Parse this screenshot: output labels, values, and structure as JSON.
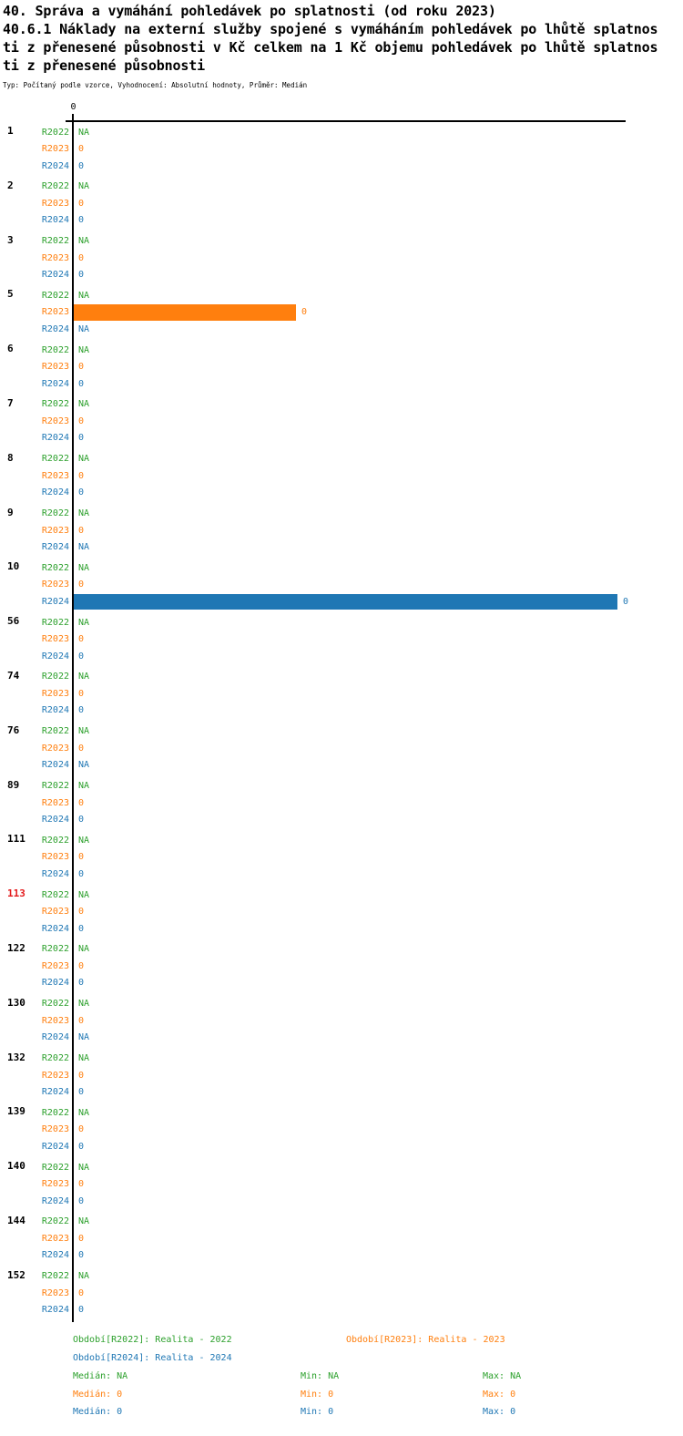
{
  "header": {
    "title": "40. Správa a vymáhání pohledávek po splatnosti (od roku 2023)",
    "subtitle_lines": [
      "40.6.1 Náklady na externí služby spojené s vymáháním pohledávek po lhůtě splatnos",
      "ti z přenesené působnosti v Kč celkem na 1 Kč objemu pohledávek po lhůtě splatnos",
      "ti z přenesené působnosti"
    ],
    "meta": "Typ: Počítaný podle vzorce, Vyhodnocení: Absolutní hodnoty, Průměr: Medián"
  },
  "chart_data": {
    "type": "bar",
    "orientation": "horizontal",
    "x_axis": {
      "position": "top",
      "tick_labels": [
        "0"
      ]
    },
    "series": [
      "R2022",
      "R2023",
      "R2024"
    ],
    "colors": {
      "R2022": "#2ca02c",
      "R2023": "#ff7f0e",
      "R2024": "#1f77b4",
      "group_id_default": "#000000",
      "group_id_highlight": "#e31a1c",
      "axis": "#000000"
    },
    "groups": [
      {
        "id": "1",
        "id_color": "#000000",
        "rows": [
          {
            "series": "R2022",
            "value": "NA",
            "bar_fraction": 0
          },
          {
            "series": "R2023",
            "value": "0",
            "bar_fraction": 0
          },
          {
            "series": "R2024",
            "value": "0",
            "bar_fraction": 0
          }
        ]
      },
      {
        "id": "2",
        "id_color": "#000000",
        "rows": [
          {
            "series": "R2022",
            "value": "NA",
            "bar_fraction": 0
          },
          {
            "series": "R2023",
            "value": "0",
            "bar_fraction": 0
          },
          {
            "series": "R2024",
            "value": "0",
            "bar_fraction": 0
          }
        ]
      },
      {
        "id": "3",
        "id_color": "#000000",
        "rows": [
          {
            "series": "R2022",
            "value": "NA",
            "bar_fraction": 0
          },
          {
            "series": "R2023",
            "value": "0",
            "bar_fraction": 0
          },
          {
            "series": "R2024",
            "value": "0",
            "bar_fraction": 0
          }
        ]
      },
      {
        "id": "5",
        "id_color": "#000000",
        "rows": [
          {
            "series": "R2022",
            "value": "NA",
            "bar_fraction": 0
          },
          {
            "series": "R2023",
            "value": "0",
            "bar_fraction": 0.403
          },
          {
            "series": "R2024",
            "value": "NA",
            "bar_fraction": 0
          }
        ]
      },
      {
        "id": "6",
        "id_color": "#000000",
        "rows": [
          {
            "series": "R2022",
            "value": "NA",
            "bar_fraction": 0
          },
          {
            "series": "R2023",
            "value": "0",
            "bar_fraction": 0
          },
          {
            "series": "R2024",
            "value": "0",
            "bar_fraction": 0
          }
        ]
      },
      {
        "id": "7",
        "id_color": "#000000",
        "rows": [
          {
            "series": "R2022",
            "value": "NA",
            "bar_fraction": 0
          },
          {
            "series": "R2023",
            "value": "0",
            "bar_fraction": 0
          },
          {
            "series": "R2024",
            "value": "0",
            "bar_fraction": 0
          }
        ]
      },
      {
        "id": "8",
        "id_color": "#000000",
        "rows": [
          {
            "series": "R2022",
            "value": "NA",
            "bar_fraction": 0
          },
          {
            "series": "R2023",
            "value": "0",
            "bar_fraction": 0
          },
          {
            "series": "R2024",
            "value": "0",
            "bar_fraction": 0
          }
        ]
      },
      {
        "id": "9",
        "id_color": "#000000",
        "rows": [
          {
            "series": "R2022",
            "value": "NA",
            "bar_fraction": 0
          },
          {
            "series": "R2023",
            "value": "0",
            "bar_fraction": 0
          },
          {
            "series": "R2024",
            "value": "NA",
            "bar_fraction": 0
          }
        ]
      },
      {
        "id": "10",
        "id_color": "#000000",
        "rows": [
          {
            "series": "R2022",
            "value": "NA",
            "bar_fraction": 0
          },
          {
            "series": "R2023",
            "value": "0",
            "bar_fraction": 0
          },
          {
            "series": "R2024",
            "value": "0",
            "bar_fraction": 0.985
          }
        ]
      },
      {
        "id": "56",
        "id_color": "#000000",
        "rows": [
          {
            "series": "R2022",
            "value": "NA",
            "bar_fraction": 0
          },
          {
            "series": "R2023",
            "value": "0",
            "bar_fraction": 0
          },
          {
            "series": "R2024",
            "value": "0",
            "bar_fraction": 0
          }
        ]
      },
      {
        "id": "74",
        "id_color": "#000000",
        "rows": [
          {
            "series": "R2022",
            "value": "NA",
            "bar_fraction": 0
          },
          {
            "series": "R2023",
            "value": "0",
            "bar_fraction": 0
          },
          {
            "series": "R2024",
            "value": "0",
            "bar_fraction": 0
          }
        ]
      },
      {
        "id": "76",
        "id_color": "#000000",
        "rows": [
          {
            "series": "R2022",
            "value": "NA",
            "bar_fraction": 0
          },
          {
            "series": "R2023",
            "value": "0",
            "bar_fraction": 0
          },
          {
            "series": "R2024",
            "value": "NA",
            "bar_fraction": 0
          }
        ]
      },
      {
        "id": "89",
        "id_color": "#000000",
        "rows": [
          {
            "series": "R2022",
            "value": "NA",
            "bar_fraction": 0
          },
          {
            "series": "R2023",
            "value": "0",
            "bar_fraction": 0
          },
          {
            "series": "R2024",
            "value": "0",
            "bar_fraction": 0
          }
        ]
      },
      {
        "id": "111",
        "id_color": "#000000",
        "rows": [
          {
            "series": "R2022",
            "value": "NA",
            "bar_fraction": 0
          },
          {
            "series": "R2023",
            "value": "0",
            "bar_fraction": 0
          },
          {
            "series": "R2024",
            "value": "0",
            "bar_fraction": 0
          }
        ]
      },
      {
        "id": "113",
        "id_color": "#e31a1c",
        "rows": [
          {
            "series": "R2022",
            "value": "NA",
            "bar_fraction": 0
          },
          {
            "series": "R2023",
            "value": "0",
            "bar_fraction": 0
          },
          {
            "series": "R2024",
            "value": "0",
            "bar_fraction": 0
          }
        ]
      },
      {
        "id": "122",
        "id_color": "#000000",
        "rows": [
          {
            "series": "R2022",
            "value": "NA",
            "bar_fraction": 0
          },
          {
            "series": "R2023",
            "value": "0",
            "bar_fraction": 0
          },
          {
            "series": "R2024",
            "value": "0",
            "bar_fraction": 0
          }
        ]
      },
      {
        "id": "130",
        "id_color": "#000000",
        "rows": [
          {
            "series": "R2022",
            "value": "NA",
            "bar_fraction": 0
          },
          {
            "series": "R2023",
            "value": "0",
            "bar_fraction": 0
          },
          {
            "series": "R2024",
            "value": "NA",
            "bar_fraction": 0
          }
        ]
      },
      {
        "id": "132",
        "id_color": "#000000",
        "rows": [
          {
            "series": "R2022",
            "value": "NA",
            "bar_fraction": 0
          },
          {
            "series": "R2023",
            "value": "0",
            "bar_fraction": 0
          },
          {
            "series": "R2024",
            "value": "0",
            "bar_fraction": 0
          }
        ]
      },
      {
        "id": "139",
        "id_color": "#000000",
        "rows": [
          {
            "series": "R2022",
            "value": "NA",
            "bar_fraction": 0
          },
          {
            "series": "R2023",
            "value": "0",
            "bar_fraction": 0
          },
          {
            "series": "R2024",
            "value": "0",
            "bar_fraction": 0
          }
        ]
      },
      {
        "id": "140",
        "id_color": "#000000",
        "rows": [
          {
            "series": "R2022",
            "value": "NA",
            "bar_fraction": 0
          },
          {
            "series": "R2023",
            "value": "0",
            "bar_fraction": 0
          },
          {
            "series": "R2024",
            "value": "0",
            "bar_fraction": 0
          }
        ]
      },
      {
        "id": "144",
        "id_color": "#000000",
        "rows": [
          {
            "series": "R2022",
            "value": "NA",
            "bar_fraction": 0
          },
          {
            "series": "R2023",
            "value": "0",
            "bar_fraction": 0
          },
          {
            "series": "R2024",
            "value": "0",
            "bar_fraction": 0
          }
        ]
      },
      {
        "id": "152",
        "id_color": "#000000",
        "rows": [
          {
            "series": "R2022",
            "value": "NA",
            "bar_fraction": 0
          },
          {
            "series": "R2023",
            "value": "0",
            "bar_fraction": 0
          },
          {
            "series": "R2024",
            "value": "0",
            "bar_fraction": 0
          }
        ]
      }
    ]
  },
  "legend": {
    "items": [
      {
        "label": "Období[R2022]: Realita - 2022",
        "color": "#2ca02c"
      },
      {
        "label": "Období[R2023]: Realita - 2023",
        "color": "#ff7f0e"
      },
      {
        "label": "Období[R2024]: Realita - 2024",
        "color": "#1f77b4"
      }
    ]
  },
  "stats": {
    "rows": [
      {
        "color": "#2ca02c",
        "median": "Medián: NA",
        "min": "Min: NA",
        "max": "Max: NA"
      },
      {
        "color": "#ff7f0e",
        "median": "Medián: 0",
        "min": "Min: 0",
        "max": "Max: 0"
      },
      {
        "color": "#1f77b4",
        "median": "Medián: 0",
        "min": "Min: 0",
        "max": "Max: 0"
      }
    ]
  }
}
